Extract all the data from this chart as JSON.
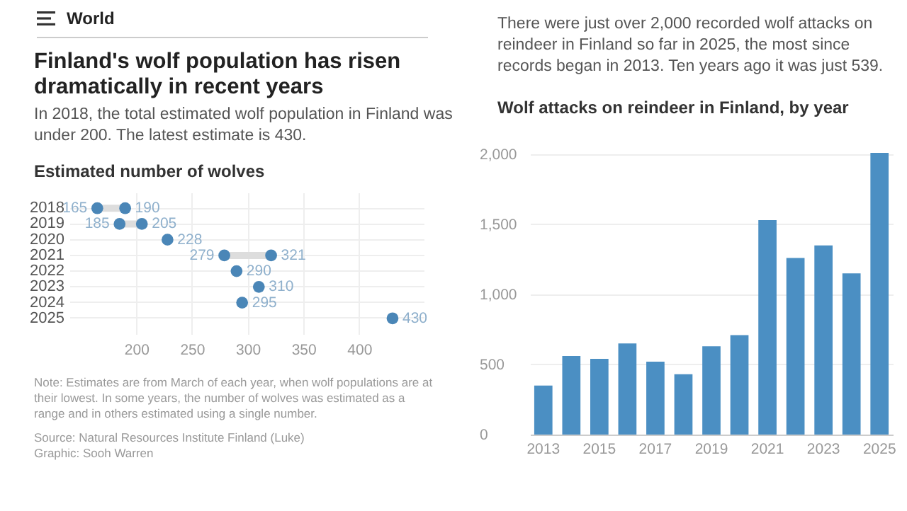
{
  "chart_data": [
    {
      "type": "scatter",
      "orientation": "horizontal",
      "title": "Finland's wolf population has risen dramatically in recent years",
      "subtitle": "In 2018, the total estimated wolf population in Finland was under 200. The latest estimate is 430.",
      "annotations": [
        "World",
        "Estimated number of wolves",
        "Note: Estimates are from March of each year, when wolf populations are at their lowest. In some years, the number of wolves was estimated as a range and in others estimated using a single number.",
        "Source: Natural Resources Institute Finland (Luke)",
        "Graphic: Sooh Warren"
      ],
      "categories": [
        "2018",
        "2019",
        "2020",
        "2021",
        "2022",
        "2023",
        "2024",
        "2025"
      ],
      "series": [
        {
          "color": "#4a86b7",
          "values": [
            165,
            185,
            228,
            279,
            290,
            310,
            295,
            430
          ]
        },
        {
          "color": "#4a86b7",
          "values": [
            190,
            205,
            null,
            321,
            null,
            null,
            null,
            null
          ]
        }
      ],
      "xlim": [
        140,
        458
      ],
      "xticks": [
        200,
        250,
        300,
        350,
        400
      ],
      "grid": true,
      "data_labels": true,
      "marker": "circle"
    },
    {
      "type": "bar",
      "title": "Wolf attacks on reindeer in Finland, by year",
      "subtitle": "There were just over 2,000 recorded wolf attacks on reindeer in Finland so far in 2025, the most since records began in 2013. Ten years ago it was just 539.",
      "categories": [
        "2013",
        null,
        "2015",
        null,
        "2017",
        null,
        "2019",
        null,
        "2021",
        null,
        "2023",
        null,
        "2025"
      ],
      "values": [
        350,
        560,
        540,
        650,
        520,
        430,
        630,
        710,
        1530,
        1260,
        1350,
        1150,
        2010
      ],
      "color": "#4b8fc3",
      "ylim": [
        0,
        2020
      ],
      "yticks": [
        0,
        500,
        {
          "value": 1000,
          "label": "1,000"
        },
        {
          "value": 1500,
          "label": "1,500"
        },
        {
          "value": 2000,
          "label": "2,000"
        }
      ],
      "grid": "y"
    }
  ]
}
